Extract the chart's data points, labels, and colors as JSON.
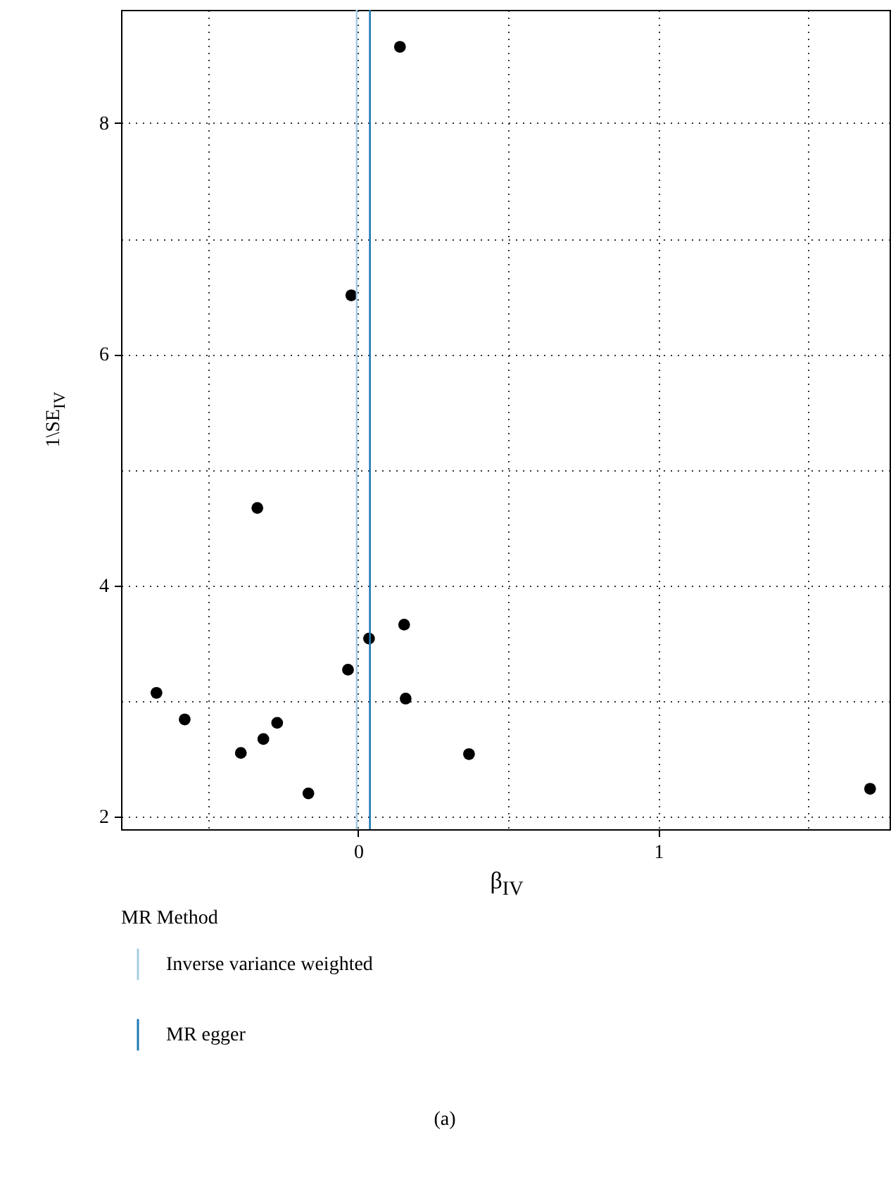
{
  "chart_data": {
    "type": "scatter",
    "xlabel": "β$_{IV}$",
    "ylabel": "1\\SE$_{IV}$",
    "legend_title": "MR Method",
    "x": [
      -0.672,
      -0.578,
      -0.391,
      -0.336,
      -0.316,
      -0.27,
      -0.166,
      -0.034,
      -0.023,
      0.036,
      0.139,
      0.153,
      0.158,
      0.369,
      1.705
    ],
    "series": [
      {
        "color": "#000000",
        "values": [
          3.07,
          2.84,
          2.55,
          4.67,
          2.67,
          2.81,
          2.2,
          3.27,
          6.51,
          3.54,
          8.66,
          3.66,
          3.02,
          2.54,
          2.24
        ]
      }
    ],
    "xlim": [
      -0.79,
      1.77
    ],
    "ylim": [
      1.89,
      8.98
    ],
    "xticks": [
      {
        "value": -0.5,
        "label": null
      },
      0,
      {
        "value": 0.5,
        "label": null
      },
      1,
      {
        "value": 1.5,
        "label": null
      }
    ],
    "yticks": [
      2,
      {
        "value": 3,
        "label": null
      },
      4,
      {
        "value": 5,
        "label": null
      },
      6,
      {
        "value": 7,
        "label": null
      },
      8
    ],
    "ref_lines": [
      {
        "axis": "x",
        "value": -0.005,
        "label": "Inverse variance weighted",
        "color": "#a6cee3"
      },
      {
        "axis": "x",
        "value": 0.039,
        "label": "MR egger",
        "color": "#1f78b4"
      }
    ],
    "grid": true,
    "legend": "bottom",
    "marker": "circle",
    "annotations": [
      "(a)"
    ]
  }
}
